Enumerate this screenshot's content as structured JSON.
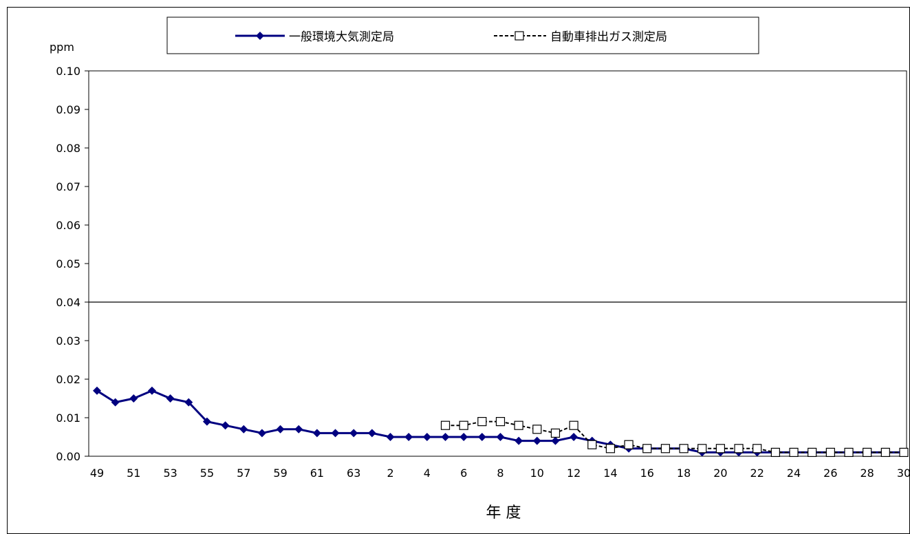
{
  "chart_data": {
    "type": "line",
    "ylabel": "ppm",
    "xlabel": "年 度",
    "ylim": [
      0,
      0.1
    ],
    "y_ticks": [
      "0.00",
      "0.01",
      "0.02",
      "0.03",
      "0.04",
      "0.05",
      "0.06",
      "0.07",
      "0.08",
      "0.09",
      "0.10"
    ],
    "x": [
      "49",
      "50",
      "51",
      "52",
      "53",
      "54",
      "55",
      "56",
      "57",
      "58",
      "59",
      "60",
      "61",
      "62",
      "63",
      "1",
      "2",
      "3",
      "4",
      "5",
      "6",
      "7",
      "8",
      "9",
      "10",
      "11",
      "12",
      "13",
      "14",
      "15",
      "16",
      "17",
      "18",
      "19",
      "20",
      "21",
      "22",
      "23",
      "24",
      "25",
      "26",
      "27",
      "28",
      "29",
      "30"
    ],
    "x_tick_labels_shown": [
      "49",
      "51",
      "53",
      "55",
      "57",
      "59",
      "61",
      "63",
      "2",
      "4",
      "6",
      "8",
      "10",
      "12",
      "14",
      "16",
      "18",
      "20",
      "22",
      "24",
      "26",
      "28",
      "30"
    ],
    "reference_line": 0.04,
    "grid": false,
    "legend_position": "top",
    "series": [
      {
        "name": "一般環境大気測定局",
        "color": "#000080",
        "marker": "filled-diamond",
        "line_style": "solid",
        "values": [
          0.017,
          0.014,
          0.015,
          0.017,
          0.015,
          0.014,
          0.009,
          0.008,
          0.007,
          0.006,
          0.007,
          0.007,
          0.006,
          0.006,
          0.006,
          0.006,
          0.005,
          0.005,
          0.005,
          0.005,
          0.005,
          0.005,
          0.005,
          0.004,
          0.004,
          0.004,
          0.005,
          0.004,
          0.003,
          0.002,
          0.002,
          0.002,
          0.002,
          0.001,
          0.001,
          0.001,
          0.001,
          0.001,
          0.001,
          0.001,
          0.001,
          0.001,
          0.001,
          0.001,
          0.001
        ]
      },
      {
        "name": "自動車排出ガス測定局",
        "color": "#000000",
        "marker": "open-square",
        "line_style": "dashed",
        "values": [
          null,
          null,
          null,
          null,
          null,
          null,
          null,
          null,
          null,
          null,
          null,
          null,
          null,
          null,
          null,
          null,
          null,
          null,
          null,
          0.008,
          0.008,
          0.009,
          0.009,
          0.008,
          0.007,
          0.006,
          0.008,
          0.003,
          0.002,
          0.003,
          0.002,
          0.002,
          0.002,
          0.002,
          0.002,
          0.002,
          0.002,
          0.001,
          0.001,
          0.001,
          0.001,
          0.001,
          0.001,
          0.001,
          0.001
        ]
      }
    ]
  }
}
